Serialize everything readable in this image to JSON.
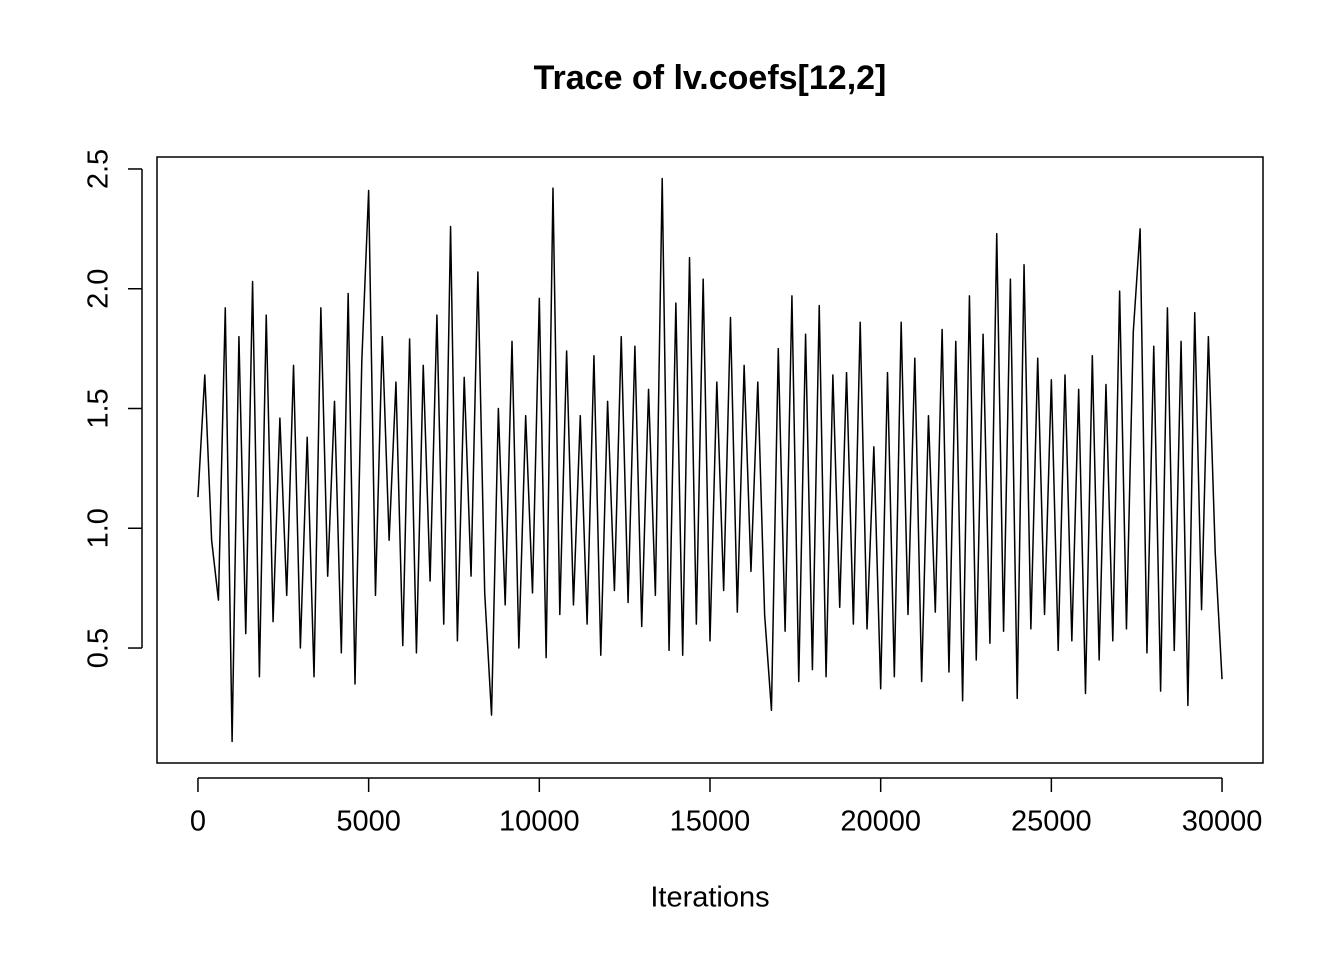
{
  "chart_data": {
    "type": "line",
    "title": "Trace of lv.coefs[12,2]",
    "x_label": "Iterations",
    "x": [
      0,
      200,
      400,
      600,
      800,
      1000,
      1200,
      1400,
      1600,
      1800,
      2000,
      2200,
      2400,
      2600,
      2800,
      3000,
      3200,
      3400,
      3600,
      3800,
      4000,
      4200,
      4400,
      4600,
      4800,
      5000,
      5200,
      5400,
      5600,
      5800,
      6000,
      6200,
      6400,
      6600,
      6800,
      7000,
      7200,
      7400,
      7600,
      7800,
      8000,
      8200,
      8400,
      8600,
      8800,
      9000,
      9200,
      9400,
      9600,
      9800,
      10000,
      10200,
      10400,
      10600,
      10800,
      11000,
      11200,
      11400,
      11600,
      11800,
      12000,
      12200,
      12400,
      12600,
      12800,
      13000,
      13200,
      13400,
      13600,
      13800,
      14000,
      14200,
      14400,
      14600,
      14800,
      15000,
      15200,
      15400,
      15600,
      15800,
      16000,
      16200,
      16400,
      16600,
      16800,
      17000,
      17200,
      17400,
      17600,
      17800,
      18000,
      18200,
      18400,
      18600,
      18800,
      19000,
      19200,
      19400,
      19600,
      19800,
      20000,
      20200,
      20400,
      20600,
      20800,
      21000,
      21200,
      21400,
      21600,
      21800,
      22000,
      22200,
      22400,
      22600,
      22800,
      23000,
      23200,
      23400,
      23600,
      23800,
      24000,
      24200,
      24400,
      24600,
      24800,
      25000,
      25200,
      25400,
      25600,
      25800,
      26000,
      26200,
      26400,
      26600,
      26800,
      27000,
      27200,
      27400,
      27600,
      27800,
      28000,
      28200,
      28400,
      28600,
      28800,
      29000,
      29200,
      29400,
      29600,
      29800,
      30000
    ],
    "series": [
      {
        "color": "#000000",
        "values": [
          1.13,
          1.64,
          0.95,
          0.7,
          1.92,
          0.11,
          1.8,
          0.56,
          2.03,
          0.38,
          1.89,
          0.61,
          1.46,
          0.72,
          1.68,
          0.5,
          1.38,
          0.38,
          1.92,
          0.8,
          1.53,
          0.48,
          1.98,
          0.35,
          1.7,
          2.41,
          0.72,
          1.8,
          0.95,
          1.61,
          0.51,
          1.79,
          0.48,
          1.68,
          0.78,
          1.89,
          0.6,
          2.26,
          0.53,
          1.63,
          0.8,
          2.07,
          0.73,
          0.22,
          1.5,
          0.68,
          1.78,
          0.5,
          1.47,
          0.73,
          1.96,
          0.46,
          2.42,
          0.64,
          1.74,
          0.68,
          1.47,
          0.6,
          1.72,
          0.47,
          1.53,
          0.74,
          1.8,
          0.69,
          1.76,
          0.59,
          1.58,
          0.72,
          2.46,
          0.49,
          1.94,
          0.47,
          2.13,
          0.6,
          2.04,
          0.53,
          1.61,
          0.74,
          1.88,
          0.65,
          1.68,
          0.82,
          1.61,
          0.64,
          0.24,
          1.75,
          0.57,
          1.97,
          0.36,
          1.81,
          0.41,
          1.93,
          0.38,
          1.64,
          0.67,
          1.65,
          0.6,
          1.86,
          0.58,
          1.34,
          0.33,
          1.65,
          0.38,
          1.86,
          0.64,
          1.71,
          0.36,
          1.47,
          0.65,
          1.83,
          0.4,
          1.78,
          0.28,
          1.97,
          0.45,
          1.81,
          0.52,
          2.23,
          0.57,
          2.04,
          0.29,
          2.1,
          0.58,
          1.71,
          0.64,
          1.62,
          0.49,
          1.64,
          0.53,
          1.58,
          0.31,
          1.72,
          0.45,
          1.6,
          0.53,
          1.99,
          0.58,
          1.82,
          2.25,
          0.48,
          1.76,
          0.32,
          1.92,
          0.49,
          1.78,
          0.26,
          1.9,
          0.66,
          1.8,
          0.9,
          0.37
        ]
      }
    ],
    "xlim": [
      -1200,
      31200
    ],
    "ylim": [
      0.02,
      2.55
    ],
    "xticks": [
      0,
      5000,
      10000,
      15000,
      20000,
      25000,
      30000
    ],
    "yticks": [
      0.5,
      {
        "value": 1,
        "label": "1.0"
      },
      1.5,
      {
        "value": 2,
        "label": "2.0"
      },
      2.5
    ]
  }
}
